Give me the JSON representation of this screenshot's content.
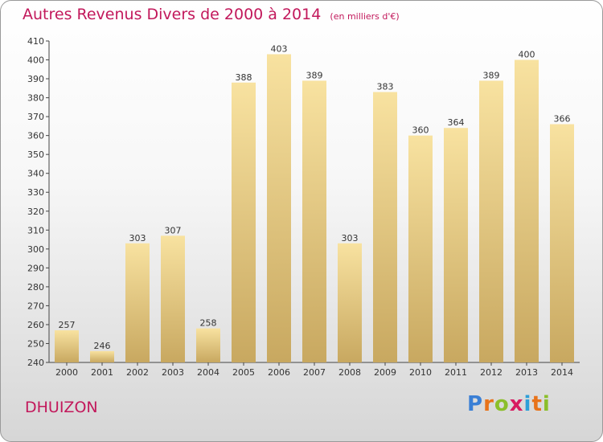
{
  "title": "Autres Revenus Divers de 2000 à 2014",
  "unit": "(en milliers d'€)",
  "commune": "DHUIZON",
  "brand": {
    "letters": [
      "P",
      "r",
      "o",
      "x",
      "i",
      "t",
      "i"
    ],
    "colors": [
      "#3a7fd5",
      "#e8731a",
      "#8bbf2a",
      "#d81b60",
      "#2d9fd8",
      "#e8731a",
      "#8bbf2a"
    ]
  },
  "colors": {
    "accent": "#c2185b",
    "bar_light": "#f8e2a0",
    "bar_dark": "#c8a860"
  },
  "chart_data": {
    "type": "bar",
    "categories": [
      "2000",
      "2001",
      "2002",
      "2003",
      "2004",
      "2005",
      "2006",
      "2007",
      "2008",
      "2009",
      "2010",
      "2011",
      "2012",
      "2013",
      "2014"
    ],
    "values": [
      257,
      246,
      303,
      307,
      258,
      388,
      403,
      389,
      303,
      383,
      360,
      364,
      389,
      400,
      366
    ],
    "ylim": [
      240,
      410
    ],
    "ytick_step": 10,
    "grid": false,
    "data_labels": true
  }
}
